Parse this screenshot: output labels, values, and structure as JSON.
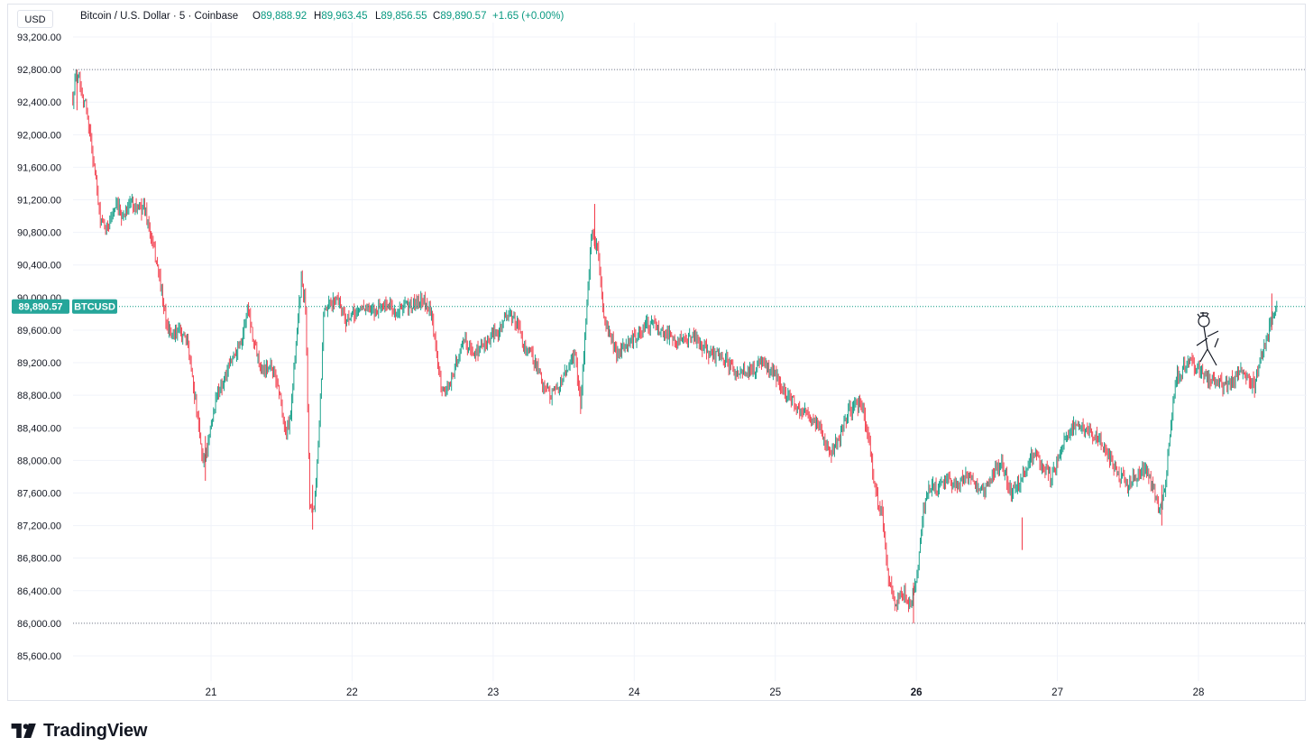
{
  "header": {
    "currency_button": "USD",
    "title": "Bitcoin / U.S. Dollar · 5 · Coinbase",
    "open_key": "O",
    "open_val": "89,888.92",
    "high_key": "H",
    "high_val": "89,963.45",
    "low_key": "L",
    "low_val": "89,856.55",
    "close_key": "C",
    "close_val": "89,890.57",
    "change": "+1.65 (+0.00%)"
  },
  "price_label": {
    "value": "89,890.57",
    "symbol": "BTCUSD"
  },
  "brand": {
    "name": "TradingView"
  },
  "colors": {
    "up": "#089981",
    "down": "#f23645",
    "price_line": "#089981",
    "grid": "#f0f3fa",
    "accent": "#26a69a"
  },
  "chart_data": {
    "type": "candlestick",
    "symbol": "BTCUSD",
    "interval": "5",
    "exchange": "Coinbase",
    "ylim": [
      85400,
      93400
    ],
    "yticks": [
      "93,200.00",
      "92,800.00",
      "92,400.00",
      "92,000.00",
      "91,600.00",
      "91,200.00",
      "90,800.00",
      "90,400.00",
      "90,000.00",
      "89,600.00",
      "89,200.00",
      "88,800.00",
      "88,400.00",
      "88,000.00",
      "87,600.00",
      "87,200.00",
      "86,800.00",
      "86,400.00",
      "86,000.00",
      "85,600.00"
    ],
    "xticks": [
      "21",
      "22",
      "23",
      "24",
      "25",
      "26",
      "27",
      "28"
    ],
    "bold_xticks": [
      "26"
    ],
    "xlim_days": [
      20.02,
      28.7
    ],
    "last_price": 89890.57,
    "dotted_high_line": 92800,
    "dotted_low_line": 86000,
    "path_points": [
      [
        20.02,
        92450
      ],
      [
        20.04,
        92700
      ],
      [
        20.06,
        92760
      ],
      [
        20.09,
        92500
      ],
      [
        20.12,
        92300
      ],
      [
        20.15,
        91900
      ],
      [
        20.18,
        91500
      ],
      [
        20.21,
        91000
      ],
      [
        20.25,
        90800
      ],
      [
        20.29,
        91000
      ],
      [
        20.33,
        91100
      ],
      [
        20.38,
        91000
      ],
      [
        20.43,
        91200
      ],
      [
        20.48,
        91100
      ],
      [
        20.53,
        91100
      ],
      [
        20.58,
        90700
      ],
      [
        20.63,
        90300
      ],
      [
        20.68,
        89700
      ],
      [
        20.73,
        89500
      ],
      [
        20.78,
        89600
      ],
      [
        20.84,
        89400
      ],
      [
        20.9,
        88600
      ],
      [
        20.94,
        88000
      ],
      [
        20.98,
        88200
      ],
      [
        21.04,
        88800
      ],
      [
        21.1,
        89000
      ],
      [
        21.16,
        89300
      ],
      [
        21.22,
        89500
      ],
      [
        21.26,
        89900
      ],
      [
        21.3,
        89500
      ],
      [
        21.36,
        89100
      ],
      [
        21.42,
        89200
      ],
      [
        21.48,
        88900
      ],
      [
        21.53,
        88300
      ],
      [
        21.56,
        88500
      ],
      [
        21.6,
        89400
      ],
      [
        21.64,
        90200
      ],
      [
        21.67,
        89900
      ],
      [
        21.7,
        87500
      ],
      [
        21.73,
        87400
      ],
      [
        21.76,
        88100
      ],
      [
        21.8,
        89800
      ],
      [
        21.84,
        89900
      ],
      [
        21.9,
        90000
      ],
      [
        21.96,
        89700
      ],
      [
        22.02,
        89800
      ],
      [
        22.08,
        89900
      ],
      [
        22.14,
        89800
      ],
      [
        22.2,
        89900
      ],
      [
        22.26,
        89900
      ],
      [
        22.32,
        89800
      ],
      [
        22.38,
        89900
      ],
      [
        22.44,
        89900
      ],
      [
        22.5,
        90000
      ],
      [
        22.56,
        89800
      ],
      [
        22.6,
        89300
      ],
      [
        22.64,
        88800
      ],
      [
        22.68,
        88900
      ],
      [
        22.74,
        89200
      ],
      [
        22.8,
        89500
      ],
      [
        22.86,
        89300
      ],
      [
        22.92,
        89400
      ],
      [
        22.98,
        89500
      ],
      [
        23.04,
        89600
      ],
      [
        23.1,
        89800
      ],
      [
        23.16,
        89700
      ],
      [
        23.22,
        89400
      ],
      [
        23.28,
        89300
      ],
      [
        23.34,
        89000
      ],
      [
        23.4,
        88800
      ],
      [
        23.46,
        88900
      ],
      [
        23.52,
        89100
      ],
      [
        23.58,
        89300
      ],
      [
        23.62,
        88700
      ],
      [
        23.66,
        89800
      ],
      [
        23.7,
        90800
      ],
      [
        23.74,
        90600
      ],
      [
        23.78,
        89800
      ],
      [
        23.83,
        89500
      ],
      [
        23.88,
        89300
      ],
      [
        23.94,
        89400
      ],
      [
        24.0,
        89500
      ],
      [
        24.06,
        89600
      ],
      [
        24.12,
        89700
      ],
      [
        24.18,
        89600
      ],
      [
        24.24,
        89550
      ],
      [
        24.3,
        89500
      ],
      [
        24.36,
        89450
      ],
      [
        24.42,
        89500
      ],
      [
        24.48,
        89400
      ],
      [
        24.54,
        89300
      ],
      [
        24.6,
        89300
      ],
      [
        24.66,
        89200
      ],
      [
        24.72,
        89100
      ],
      [
        24.78,
        89100
      ],
      [
        24.84,
        89100
      ],
      [
        24.9,
        89200
      ],
      [
        24.96,
        89100
      ],
      [
        25.02,
        89000
      ],
      [
        25.08,
        88800
      ],
      [
        25.14,
        88700
      ],
      [
        25.2,
        88600
      ],
      [
        25.26,
        88500
      ],
      [
        25.32,
        88400
      ],
      [
        25.36,
        88200
      ],
      [
        25.4,
        88100
      ],
      [
        25.46,
        88300
      ],
      [
        25.52,
        88600
      ],
      [
        25.58,
        88700
      ],
      [
        25.62,
        88600
      ],
      [
        25.66,
        88300
      ],
      [
        25.7,
        87700
      ],
      [
        25.76,
        87300
      ],
      [
        25.8,
        86600
      ],
      [
        25.85,
        86200
      ],
      [
        25.9,
        86400
      ],
      [
        25.95,
        86200
      ],
      [
        26.0,
        86500
      ],
      [
        26.05,
        87400
      ],
      [
        26.1,
        87700
      ],
      [
        26.15,
        87600
      ],
      [
        26.2,
        87800
      ],
      [
        26.25,
        87700
      ],
      [
        26.3,
        87700
      ],
      [
        26.36,
        87800
      ],
      [
        26.42,
        87700
      ],
      [
        26.48,
        87600
      ],
      [
        26.54,
        87800
      ],
      [
        26.6,
        88000
      ],
      [
        26.66,
        87600
      ],
      [
        26.72,
        87700
      ],
      [
        26.78,
        87900
      ],
      [
        26.84,
        88100
      ],
      [
        26.9,
        87900
      ],
      [
        26.96,
        87800
      ],
      [
        27.02,
        88100
      ],
      [
        27.08,
        88300
      ],
      [
        27.14,
        88500
      ],
      [
        27.2,
        88400
      ],
      [
        27.26,
        88300
      ],
      [
        27.32,
        88200
      ],
      [
        27.38,
        88000
      ],
      [
        27.44,
        87800
      ],
      [
        27.5,
        87700
      ],
      [
        27.56,
        87800
      ],
      [
        27.62,
        87900
      ],
      [
        27.68,
        87700
      ],
      [
        27.72,
        87400
      ],
      [
        27.76,
        87600
      ],
      [
        27.8,
        88300
      ],
      [
        27.84,
        89000
      ],
      [
        27.88,
        89100
      ],
      [
        27.94,
        89200
      ],
      [
        28.0,
        89100
      ],
      [
        28.06,
        89000
      ],
      [
        28.12,
        89000
      ],
      [
        28.18,
        88900
      ],
      [
        28.24,
        89000
      ],
      [
        28.3,
        89100
      ],
      [
        28.36,
        89000
      ],
      [
        28.4,
        88900
      ],
      [
        28.44,
        89300
      ],
      [
        28.48,
        89500
      ],
      [
        28.52,
        89700
      ],
      [
        28.56,
        89890
      ]
    ]
  }
}
